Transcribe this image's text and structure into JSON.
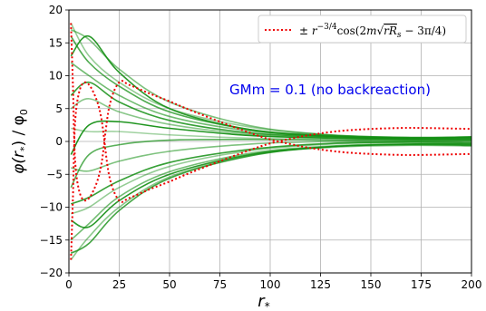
{
  "chart_data": {
    "type": "line",
    "xlabel": "r",
    "xlabel_sub": "*",
    "ylabel": "φ(r) / φ",
    "ylabel_parts": {
      "pre": "φ(",
      "r": "r",
      "sub": "*",
      "post": ") / φ",
      "sub0": "0"
    },
    "xlim": [
      0,
      200
    ],
    "ylim": [
      -20,
      20
    ],
    "xticks": [
      0,
      25,
      50,
      75,
      100,
      125,
      150,
      175,
      200
    ],
    "yticks": [
      -20,
      -15,
      -10,
      -5,
      0,
      5,
      10,
      15,
      20
    ],
    "grid": true,
    "legend_position": "top-right",
    "legend": {
      "pre": "± ",
      "r": "r",
      "exp": "−3/4",
      "cos": "cos(2",
      "m": "m",
      "rRs": "rR",
      "rRs_sub": "s",
      "post": " − 3π/4)"
    },
    "annotation": {
      "text": "GMm = 0.1 (no backreaction)",
      "position": "upper-right",
      "color": "#0000ee"
    },
    "envelope_color": "#ee0000",
    "curve_color": "#148f14",
    "envelope_points": {
      "x": [
        1,
        2,
        3,
        5,
        8,
        12,
        16,
        20,
        25,
        30,
        40,
        50,
        60,
        75,
        90,
        100,
        110,
        120,
        135,
        150,
        165,
        175,
        185,
        200
      ],
      "y_upper": [
        18.0,
        8.5,
        -2.5,
        -7.4,
        -9.0,
        -7.6,
        -3.7,
        5.2,
        9.0,
        8.6,
        7.3,
        6.1,
        4.8,
        3.0,
        1.3,
        0.3,
        -0.4,
        -1.0,
        -1.6,
        -1.9,
        -2.05,
        -2.05,
        -2.0,
        -1.9
      ],
      "y_lower": [
        -18.0,
        -8.5,
        2.5,
        7.4,
        9.0,
        7.6,
        3.7,
        -5.2,
        -9.0,
        -8.6,
        -7.3,
        -6.1,
        -4.8,
        -3.0,
        -1.3,
        -0.3,
        0.4,
        1.0,
        1.6,
        1.9,
        2.05,
        2.05,
        2.0,
        1.9
      ]
    },
    "series": [
      {
        "shade": 0.45,
        "values": [
          18.0,
          13.0,
          9.0,
          5.0,
          2.2,
          1.0,
          0.6,
          0.7
        ]
      },
      {
        "shade": 0.55,
        "values": [
          17.0,
          15.5,
          11.0,
          6.0,
          2.4,
          1.0,
          0.6,
          0.7
        ]
      },
      {
        "shade": 0.75,
        "values": [
          16.0,
          12.0,
          8.4,
          4.5,
          1.8,
          0.9,
          0.6,
          0.7
        ]
      },
      {
        "shade": 0.9,
        "values": [
          13.0,
          16.0,
          10.5,
          5.0,
          1.8,
          0.8,
          0.5,
          0.6
        ]
      },
      {
        "shade": 0.6,
        "values": [
          12.0,
          10.0,
          7.0,
          3.8,
          1.6,
          0.8,
          0.5,
          0.6
        ]
      },
      {
        "shade": 0.85,
        "values": [
          7.0,
          9.0,
          6.0,
          3.2,
          1.3,
          0.7,
          0.4,
          0.5
        ]
      },
      {
        "shade": 0.5,
        "values": [
          5.0,
          6.5,
          4.5,
          2.6,
          1.1,
          0.6,
          0.4,
          0.4
        ]
      },
      {
        "shade": 0.95,
        "values": [
          -2.0,
          2.5,
          3.0,
          2.0,
          0.9,
          0.5,
          0.3,
          0.3
        ]
      },
      {
        "shade": 0.4,
        "values": [
          2.0,
          1.5,
          1.5,
          1.0,
          0.5,
          0.3,
          0.2,
          0.2
        ]
      },
      {
        "shade": 0.7,
        "values": [
          -7.0,
          -2.0,
          -0.5,
          0.2,
          0.3,
          0.2,
          0.1,
          0.1
        ]
      },
      {
        "shade": 0.55,
        "values": [
          -4.0,
          -4.5,
          -3.0,
          -1.5,
          -0.4,
          0.0,
          0.0,
          0.0
        ]
      },
      {
        "shade": 0.85,
        "values": [
          -9.5,
          -8.5,
          -6.0,
          -3.2,
          -1.2,
          -0.3,
          -0.1,
          -0.2
        ]
      },
      {
        "shade": 0.45,
        "values": [
          -11.0,
          -10.0,
          -7.0,
          -3.8,
          -1.4,
          -0.4,
          -0.2,
          -0.3
        ]
      },
      {
        "shade": 0.9,
        "values": [
          -12.0,
          -13.0,
          -9.0,
          -5.0,
          -2.0,
          -0.8,
          -0.4,
          -0.4
        ]
      },
      {
        "shade": 0.6,
        "values": [
          -15.0,
          -12.5,
          -8.4,
          -4.6,
          -1.8,
          -0.7,
          -0.4,
          -0.5
        ]
      },
      {
        "shade": 0.8,
        "values": [
          -17.0,
          -15.5,
          -10.5,
          -5.6,
          -2.2,
          -0.8,
          -0.5,
          -0.6
        ]
      },
      {
        "shade": 0.5,
        "values": [
          -18.0,
          -14.5,
          -10.0,
          -5.4,
          -2.1,
          -0.9,
          -0.6,
          -0.7
        ]
      }
    ],
    "series_x": [
      1,
      10,
      25,
      50,
      90,
      130,
      170,
      200
    ]
  }
}
